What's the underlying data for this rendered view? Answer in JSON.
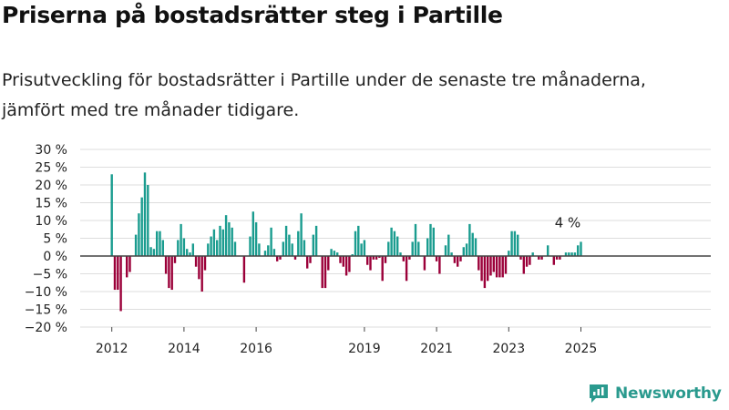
{
  "header": {
    "title": "Priserna på bostadsrätter steg i Partille",
    "subtitle": "Prisutveckling för bostadsrätter i Partille under de senaste tre månaderna, jämfört med tre månader tidigare."
  },
  "brand": {
    "name": "Newsworthy",
    "icon": "newsworthy-logo-icon"
  },
  "colors": {
    "positive": "#1a9c8f",
    "negative": "#9b0039",
    "zero_line": "#444444",
    "grid": "#dddddd"
  },
  "chart_data": {
    "type": "bar",
    "x_start": "2012-01",
    "y_unit": "%",
    "ylim": [
      -20,
      30
    ],
    "yticks": [
      "30 %",
      "25 %",
      "20 %",
      "15 %",
      "10 %",
      "5 %",
      "0 %",
      "−5 %",
      "−10 %",
      "−15 %",
      "−20 %"
    ],
    "ytick_values": [
      30,
      25,
      20,
      15,
      10,
      5,
      0,
      -5,
      -10,
      -15,
      -20
    ],
    "xticks": [
      {
        "label": "2012",
        "date": "2012-01"
      },
      {
        "label": "2014",
        "date": "2014-01"
      },
      {
        "label": "2016",
        "date": "2016-01"
      },
      {
        "label": "2019",
        "date": "2019-01"
      },
      {
        "label": "2021",
        "date": "2021-01"
      },
      {
        "label": "2023",
        "date": "2023-01"
      },
      {
        "label": "2025",
        "date": "2025-01"
      }
    ],
    "values": [
      23,
      -9.5,
      -9.5,
      -15.5,
      0,
      -6,
      -4.5,
      0,
      6,
      12,
      16.5,
      23.5,
      20,
      2.5,
      2,
      7,
      7,
      4.5,
      -5,
      -9,
      -9.5,
      -2,
      4.5,
      9,
      5,
      2,
      1,
      3.5,
      -3,
      -6.5,
      -10,
      -4,
      3.5,
      5.5,
      7.5,
      4.5,
      8.5,
      7.5,
      11.5,
      9.5,
      8,
      4,
      0,
      0,
      -7.5,
      0,
      5.5,
      12.5,
      9.5,
      3.5,
      0,
      1.5,
      3,
      8,
      2,
      -1.5,
      -1,
      4,
      8.5,
      6,
      3.5,
      -1,
      7,
      12,
      4.5,
      -3.5,
      -2,
      6,
      8.5,
      0,
      -9,
      -9,
      -4,
      2,
      1.5,
      1,
      -2,
      -3,
      -5.5,
      -4.5,
      0.5,
      7,
      8.5,
      3.5,
      4.5,
      -2.5,
      -4,
      -1,
      -1,
      -0.5,
      -7,
      -2,
      4,
      8,
      7,
      5.5,
      1,
      -1.5,
      -7,
      -1,
      4,
      9,
      4,
      0,
      -4,
      5,
      9,
      8,
      -1.5,
      -5,
      0,
      3,
      6,
      1,
      -2,
      -3,
      -1.5,
      2.5,
      3.5,
      9,
      6.5,
      5,
      -4,
      -7,
      -9,
      -7,
      -5.5,
      -4.5,
      -6,
      -6,
      -6,
      -5,
      1.5,
      7,
      7,
      6,
      -1,
      -5,
      -3,
      -2.5,
      1,
      0,
      -1,
      -1,
      0,
      3,
      0,
      -2.5,
      -1,
      -1,
      0,
      1,
      1,
      1,
      1,
      3,
      4
    ],
    "annotation": {
      "text": "4 %"
    }
  }
}
